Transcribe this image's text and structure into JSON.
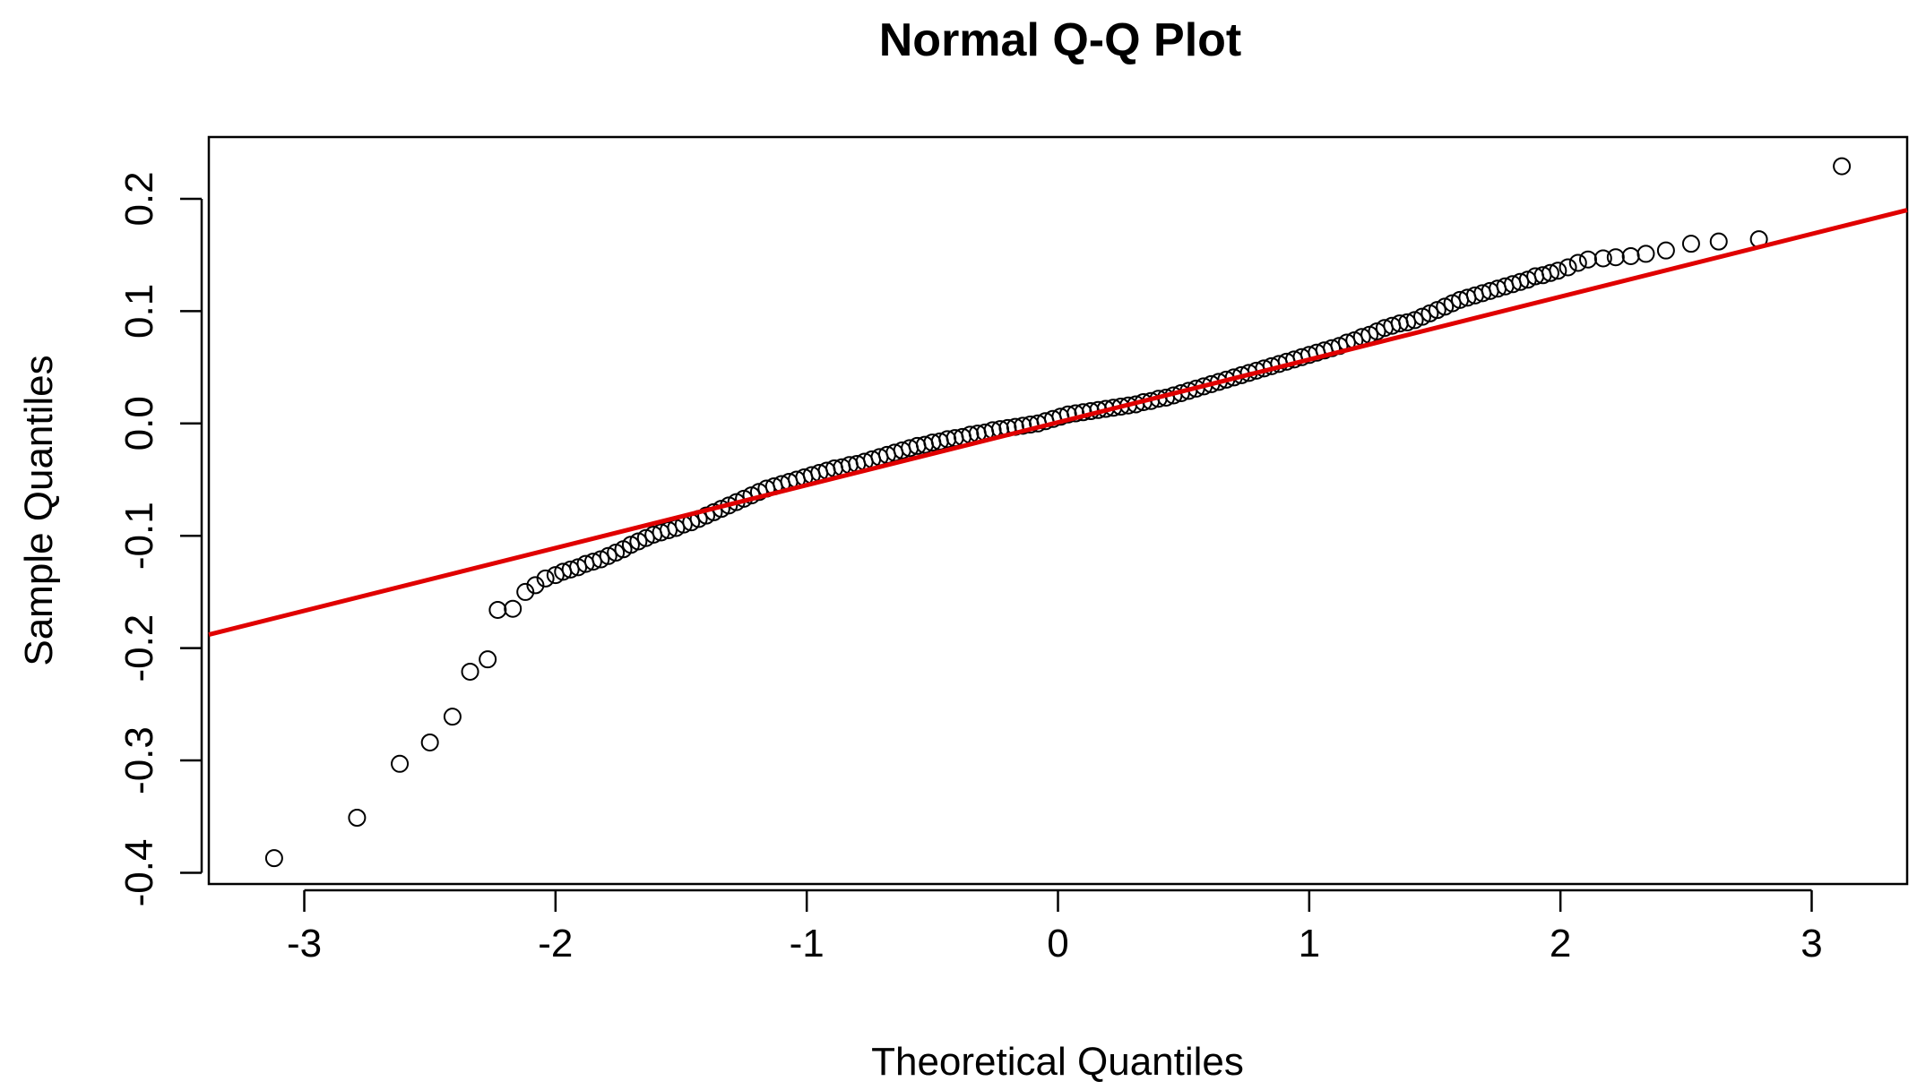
{
  "chart_data": {
    "type": "scatter",
    "title": "Normal Q-Q Plot",
    "xlabel": "Theoretical Quantiles",
    "ylabel": "Sample Quantiles",
    "xlim": [
      -3.38,
      3.38
    ],
    "ylim": [
      -0.41,
      0.255
    ],
    "x_ticks": [
      -3,
      -2,
      -1,
      0,
      1,
      2,
      3
    ],
    "x_tick_labels": [
      "-3",
      "-2",
      "-1",
      "0",
      "1",
      "2",
      "3"
    ],
    "y_ticks": [
      -0.4,
      -0.3,
      -0.2,
      -0.1,
      0.0,
      0.1,
      0.2
    ],
    "y_tick_labels": [
      "-0.4",
      "-0.3",
      "-0.2",
      "-0.1",
      "0.0",
      "0.1",
      "0.2"
    ],
    "grid": false,
    "legend": "none",
    "point_color": "#000000",
    "line_color": "#e00000",
    "reference_line": {
      "x": [
        -3.38,
        3.38
      ],
      "y": [
        -0.188,
        0.19
      ]
    },
    "series": [
      {
        "values": [
          [
            -3.12,
            -0.387
          ],
          [
            -2.79,
            -0.351
          ],
          [
            -2.62,
            -0.303
          ],
          [
            -2.5,
            -0.284
          ],
          [
            -2.41,
            -0.261
          ],
          [
            -2.34,
            -0.221
          ],
          [
            -2.27,
            -0.21
          ],
          [
            -2.23,
            -0.166
          ],
          [
            -2.17,
            -0.165
          ],
          [
            -2.12,
            -0.15
          ],
          [
            -2.08,
            -0.144
          ],
          [
            -2.04,
            -0.138
          ],
          [
            -2.0,
            -0.135
          ],
          [
            -1.97,
            -0.132
          ],
          [
            -1.94,
            -0.13
          ],
          [
            -1.91,
            -0.128
          ],
          [
            -1.88,
            -0.125
          ],
          [
            -1.85,
            -0.123
          ],
          [
            -1.82,
            -0.121
          ],
          [
            -1.79,
            -0.118
          ],
          [
            -1.76,
            -0.115
          ],
          [
            -1.73,
            -0.112
          ],
          [
            -1.7,
            -0.108
          ],
          [
            -1.67,
            -0.105
          ],
          [
            -1.64,
            -0.102
          ],
          [
            -1.61,
            -0.099
          ],
          [
            -1.58,
            -0.097
          ],
          [
            -1.55,
            -0.095
          ],
          [
            -1.52,
            -0.093
          ],
          [
            -1.49,
            -0.09
          ],
          [
            -1.46,
            -0.088
          ],
          [
            -1.43,
            -0.085
          ],
          [
            -1.4,
            -0.082
          ],
          [
            -1.37,
            -0.079
          ],
          [
            -1.34,
            -0.076
          ],
          [
            -1.31,
            -0.073
          ],
          [
            -1.28,
            -0.07
          ],
          [
            -1.25,
            -0.067
          ],
          [
            -1.22,
            -0.064
          ],
          [
            -1.19,
            -0.061
          ],
          [
            -1.16,
            -0.058
          ],
          [
            -1.13,
            -0.056
          ],
          [
            -1.1,
            -0.054
          ],
          [
            -1.07,
            -0.052
          ],
          [
            -1.04,
            -0.05
          ],
          [
            -1.01,
            -0.048
          ],
          [
            -0.98,
            -0.046
          ],
          [
            -0.95,
            -0.044
          ],
          [
            -0.92,
            -0.042
          ],
          [
            -0.89,
            -0.04
          ],
          [
            -0.86,
            -0.039
          ],
          [
            -0.83,
            -0.037
          ],
          [
            -0.8,
            -0.036
          ],
          [
            -0.77,
            -0.034
          ],
          [
            -0.74,
            -0.032
          ],
          [
            -0.71,
            -0.03
          ],
          [
            -0.68,
            -0.028
          ],
          [
            -0.65,
            -0.026
          ],
          [
            -0.62,
            -0.024
          ],
          [
            -0.59,
            -0.022
          ],
          [
            -0.56,
            -0.02
          ],
          [
            -0.53,
            -0.019
          ],
          [
            -0.5,
            -0.017
          ],
          [
            -0.47,
            -0.016
          ],
          [
            -0.44,
            -0.014
          ],
          [
            -0.41,
            -0.013
          ],
          [
            -0.38,
            -0.012
          ],
          [
            -0.35,
            -0.01
          ],
          [
            -0.32,
            -0.009
          ],
          [
            -0.29,
            -0.008
          ],
          [
            -0.26,
            -0.006
          ],
          [
            -0.23,
            -0.005
          ],
          [
            -0.2,
            -0.004
          ],
          [
            -0.17,
            -0.003
          ],
          [
            -0.14,
            -0.002
          ],
          [
            -0.11,
            -0.001
          ],
          [
            -0.08,
            0.0
          ],
          [
            -0.05,
            0.002
          ],
          [
            -0.02,
            0.004
          ],
          [
            0.01,
            0.006
          ],
          [
            0.04,
            0.008
          ],
          [
            0.07,
            0.009
          ],
          [
            0.1,
            0.01
          ],
          [
            0.13,
            0.011
          ],
          [
            0.16,
            0.012
          ],
          [
            0.19,
            0.013
          ],
          [
            0.22,
            0.014
          ],
          [
            0.25,
            0.015
          ],
          [
            0.28,
            0.016
          ],
          [
            0.31,
            0.017
          ],
          [
            0.34,
            0.019
          ],
          [
            0.37,
            0.02
          ],
          [
            0.4,
            0.022
          ],
          [
            0.43,
            0.023
          ],
          [
            0.46,
            0.025
          ],
          [
            0.49,
            0.027
          ],
          [
            0.52,
            0.029
          ],
          [
            0.55,
            0.031
          ],
          [
            0.58,
            0.033
          ],
          [
            0.61,
            0.035
          ],
          [
            0.64,
            0.037
          ],
          [
            0.67,
            0.039
          ],
          [
            0.7,
            0.041
          ],
          [
            0.73,
            0.043
          ],
          [
            0.76,
            0.045
          ],
          [
            0.79,
            0.047
          ],
          [
            0.82,
            0.049
          ],
          [
            0.85,
            0.051
          ],
          [
            0.88,
            0.053
          ],
          [
            0.91,
            0.055
          ],
          [
            0.94,
            0.057
          ],
          [
            0.97,
            0.059
          ],
          [
            1.0,
            0.061
          ],
          [
            1.03,
            0.063
          ],
          [
            1.06,
            0.065
          ],
          [
            1.09,
            0.067
          ],
          [
            1.12,
            0.069
          ],
          [
            1.15,
            0.072
          ],
          [
            1.18,
            0.074
          ],
          [
            1.21,
            0.077
          ],
          [
            1.24,
            0.079
          ],
          [
            1.27,
            0.082
          ],
          [
            1.3,
            0.085
          ],
          [
            1.33,
            0.087
          ],
          [
            1.36,
            0.089
          ],
          [
            1.39,
            0.09
          ],
          [
            1.42,
            0.092
          ],
          [
            1.45,
            0.095
          ],
          [
            1.48,
            0.098
          ],
          [
            1.51,
            0.101
          ],
          [
            1.54,
            0.104
          ],
          [
            1.57,
            0.107
          ],
          [
            1.6,
            0.11
          ],
          [
            1.63,
            0.112
          ],
          [
            1.66,
            0.114
          ],
          [
            1.69,
            0.116
          ],
          [
            1.72,
            0.118
          ],
          [
            1.75,
            0.12
          ],
          [
            1.78,
            0.122
          ],
          [
            1.81,
            0.124
          ],
          [
            1.84,
            0.126
          ],
          [
            1.87,
            0.128
          ],
          [
            1.9,
            0.131
          ],
          [
            1.93,
            0.132
          ],
          [
            1.96,
            0.134
          ],
          [
            1.99,
            0.136
          ],
          [
            2.03,
            0.139
          ],
          [
            2.07,
            0.143
          ],
          [
            2.11,
            0.146
          ],
          [
            2.17,
            0.147
          ],
          [
            2.22,
            0.148
          ],
          [
            2.28,
            0.149
          ],
          [
            2.34,
            0.151
          ],
          [
            2.42,
            0.154
          ],
          [
            2.52,
            0.16
          ],
          [
            2.63,
            0.162
          ],
          [
            2.79,
            0.164
          ],
          [
            3.12,
            0.229
          ]
        ]
      }
    ]
  }
}
